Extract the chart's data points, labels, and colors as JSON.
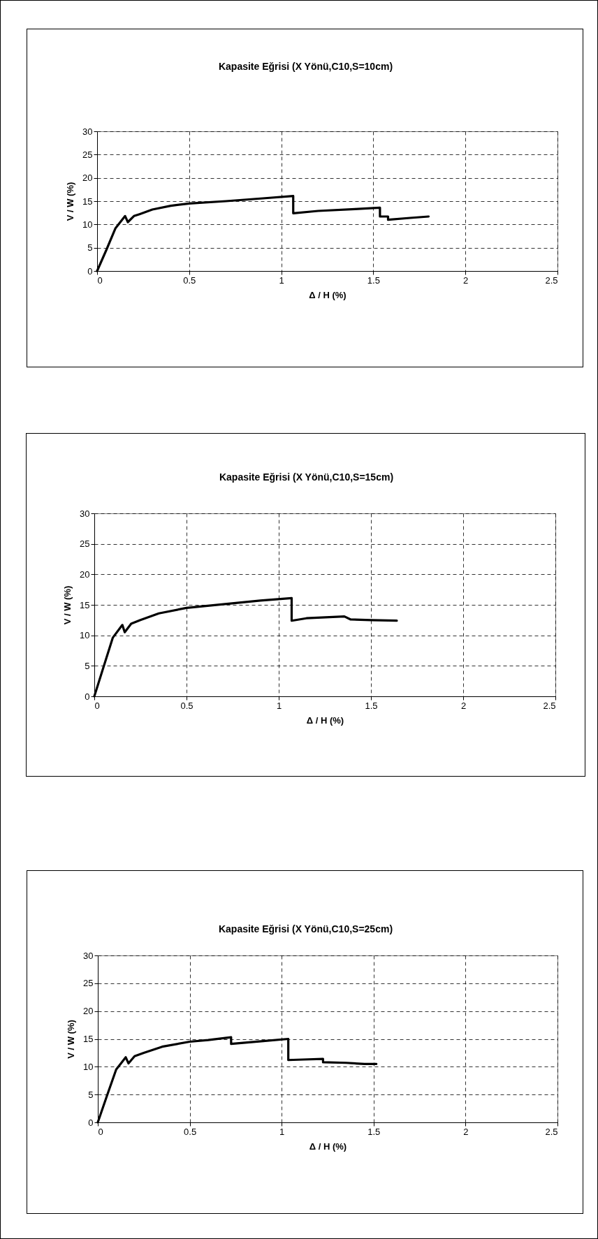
{
  "chart_data": [
    {
      "type": "line",
      "title": "Kapasite Eğrisi (X Yönü,C10,S=10cm)",
      "xlabel": "Δ / H (%)",
      "ylabel": "V / W (%)",
      "xlim": [
        0,
        2.5
      ],
      "xticks": [
        0,
        0.5,
        1,
        1.5,
        2,
        2.5
      ],
      "ylim": [
        0,
        30
      ],
      "yticks": [
        0,
        5,
        10,
        15,
        20,
        25,
        30
      ],
      "grid": true,
      "series": [
        {
          "color": "#000000",
          "x": [
            0,
            0.05,
            0.1,
            0.152,
            0.167,
            0.2,
            0.23,
            0.3,
            0.4,
            0.5,
            0.7,
            0.9,
            1.065,
            1.065,
            1.2,
            1.4,
            1.536,
            1.536,
            1.58,
            1.58,
            1.7,
            1.8
          ],
          "values": [
            0,
            4.5,
            9.2,
            11.8,
            10.5,
            11.8,
            12.2,
            13.2,
            14,
            14.5,
            15,
            15.6,
            16.1,
            12.4,
            12.9,
            13.3,
            13.6,
            11.7,
            11.7,
            11,
            11.4,
            11.7
          ]
        }
      ]
    },
    {
      "type": "line",
      "title": "Kapasite Eğrisi (X Yönü,C10,S=15cm)",
      "xlabel": "Δ / H (%)",
      "ylabel": "V / W (%)",
      "xlim": [
        0,
        2.5
      ],
      "xticks": [
        0,
        0.5,
        1,
        1.5,
        2,
        2.5
      ],
      "ylim": [
        0,
        30
      ],
      "yticks": [
        0,
        5,
        10,
        15,
        20,
        25,
        30
      ],
      "grid": true,
      "series": [
        {
          "color": "#000000",
          "x": [
            0,
            0.05,
            0.1,
            0.152,
            0.165,
            0.2,
            0.25,
            0.35,
            0.5,
            0.7,
            0.9,
            1.07,
            1.07,
            1.15,
            1.356,
            1.39,
            1.5,
            1.64
          ],
          "values": [
            0,
            4.8,
            9.6,
            11.7,
            10.5,
            11.9,
            12.5,
            13.6,
            14.5,
            15.1,
            15.7,
            16.1,
            12.4,
            12.8,
            13.1,
            12.6,
            12.5,
            12.4
          ]
        }
      ]
    },
    {
      "type": "line",
      "title": "Kapasite Eğrisi (X Yönü,C10,S=25cm)",
      "xlabel": "Δ / H (%)",
      "ylabel": "V / W (%)",
      "xlim": [
        0,
        2.5
      ],
      "xticks": [
        0,
        0.5,
        1,
        1.5,
        2,
        2.5
      ],
      "ylim": [
        0,
        30
      ],
      "yticks": [
        0,
        5,
        10,
        15,
        20,
        25,
        30
      ],
      "grid": true,
      "series": [
        {
          "color": "#000000",
          "x": [
            0,
            0.05,
            0.1,
            0.152,
            0.167,
            0.2,
            0.25,
            0.35,
            0.5,
            0.6,
            0.725,
            0.725,
            0.9,
            1.036,
            1.036,
            1.12,
            1.225,
            1.225,
            1.35,
            1.45,
            1.515
          ],
          "values": [
            0,
            4.8,
            9.5,
            11.7,
            10.6,
            11.9,
            12.5,
            13.6,
            14.5,
            14.8,
            15.3,
            14.1,
            14.6,
            15,
            11.2,
            11.3,
            11.4,
            10.8,
            10.7,
            10.5,
            10.5
          ]
        }
      ]
    }
  ]
}
